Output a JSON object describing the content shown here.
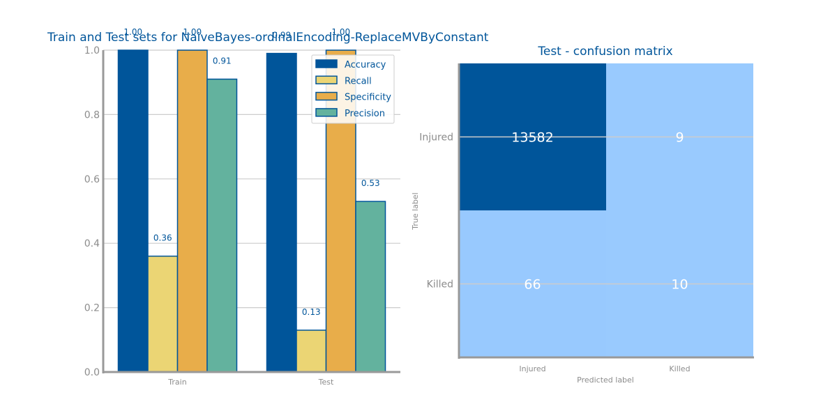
{
  "chart_data": [
    {
      "type": "bar",
      "title": "Train and Test sets for NaiveBayes-ordinalEncoding-ReplaceMVByConstant",
      "categories": [
        "Train",
        "Test"
      ],
      "ylim": [
        0,
        1.0
      ],
      "yticks": [
        "0.0",
        "0.2",
        "0.4",
        "0.6",
        "0.8",
        "1.0"
      ],
      "grid": true,
      "legend_position": "top-right",
      "series": [
        {
          "name": "Accuracy",
          "values": [
            1.0,
            0.99
          ],
          "labels": [
            "1.00",
            "0.99"
          ],
          "color": "#00559a"
        },
        {
          "name": "Recall",
          "values": [
            0.36,
            0.13
          ],
          "labels": [
            "0.36",
            "0.13"
          ],
          "color": "#ebd574"
        },
        {
          "name": "Specificity",
          "values": [
            1.0,
            1.0
          ],
          "labels": [
            "1.00",
            "1.00"
          ],
          "color": "#e8ad4a"
        },
        {
          "name": "Precision",
          "values": [
            0.91,
            0.53
          ],
          "labels": [
            "0.91",
            "0.53"
          ],
          "color": "#63b29e"
        }
      ]
    },
    {
      "type": "heatmap",
      "title": "Test - confusion matrix",
      "xlabel": "Predicted label",
      "ylabel": "True label",
      "x_categories": [
        "Injured",
        "Killed"
      ],
      "y_categories": [
        "Injured",
        "Killed"
      ],
      "values": [
        [
          13582,
          9
        ],
        [
          66,
          10
        ]
      ],
      "colors": {
        "high": "#00559a",
        "low": "#99cafe"
      }
    }
  ]
}
